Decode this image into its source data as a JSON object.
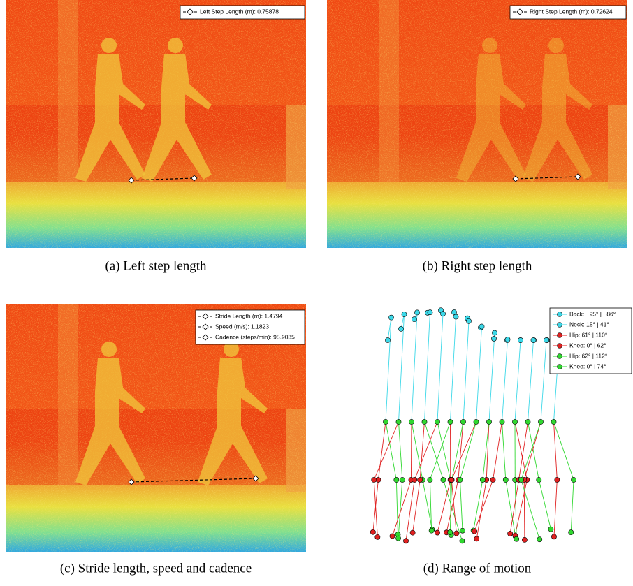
{
  "panels": [
    {
      "caption": "(a) Left step length",
      "legend": [
        "Left Step Length (m): 0.75878"
      ]
    },
    {
      "caption": "(b) Right step length",
      "legend": [
        "Right Step Length (m): 0.72624"
      ]
    },
    {
      "caption": "(c) Stride length, speed and cadence",
      "legend": [
        "Stride Length (m): 1.4794",
        "Speed (m/s): 1.1823",
        "Cadence (steps/min): 95.9035"
      ]
    },
    {
      "caption": "(d) Range of motion",
      "legend": [
        "Back: −95° | −86°",
        "Neck: 15° | 41°",
        "Hip:  61° | 110°",
        "Knee: 0° | 62°",
        "Hip:  62° | 112°",
        "Knee: 0° | 74°"
      ]
    }
  ]
}
